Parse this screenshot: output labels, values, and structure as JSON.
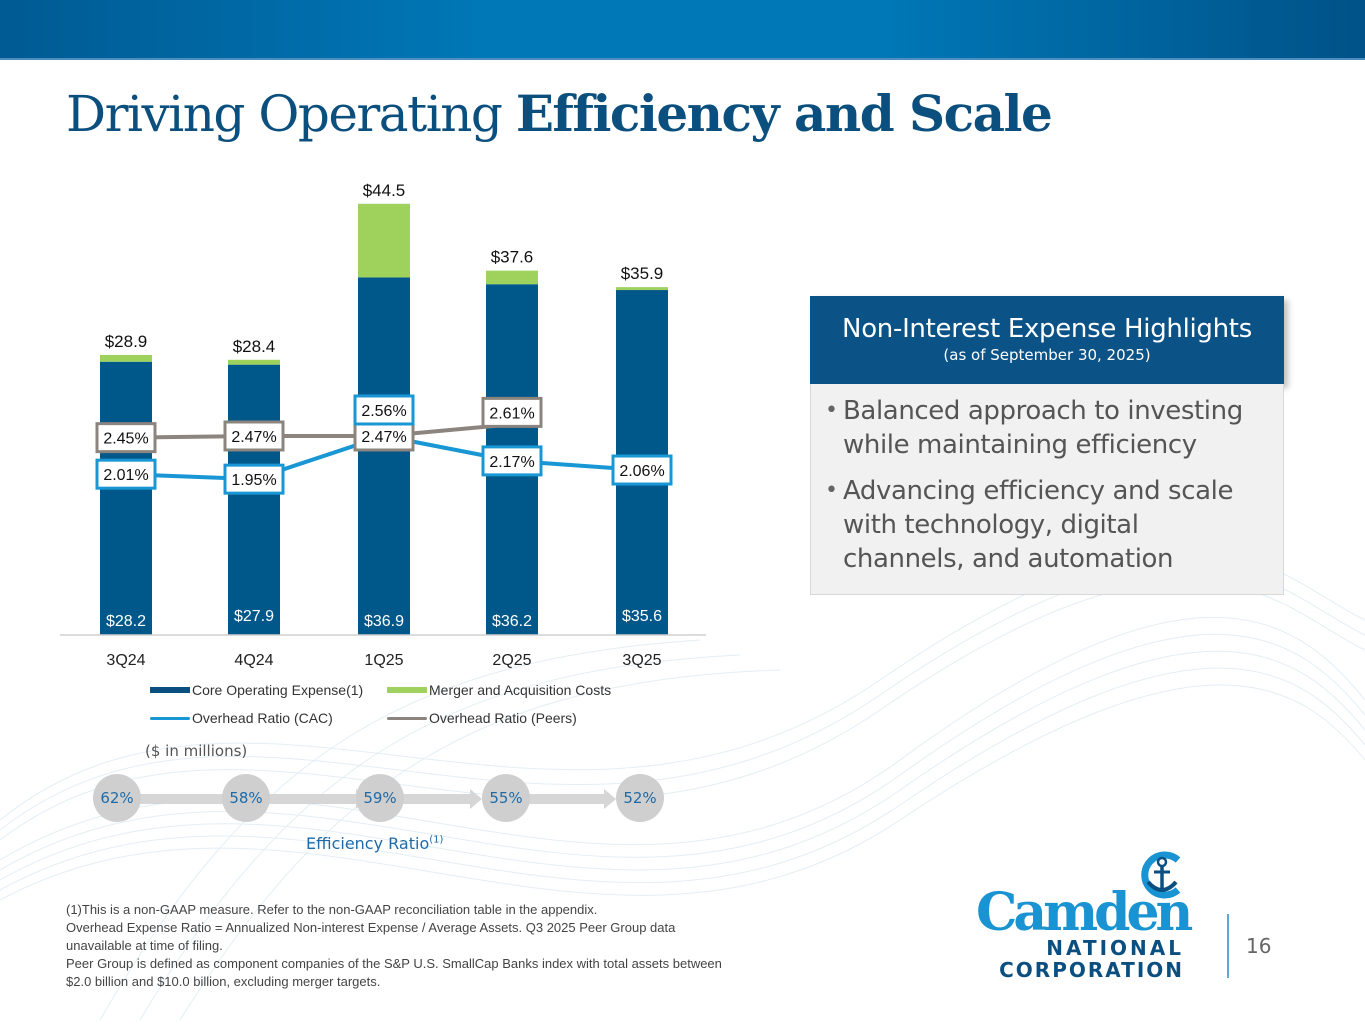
{
  "slide": {
    "title_light": "Driving Operating ",
    "title_bold": "Efficiency and Scale",
    "page_number": "16"
  },
  "colors": {
    "core": "#00578a",
    "merger": "#9fd15d",
    "cac_line": "#1897d4",
    "peers_line": "#8c847e",
    "title": "#0a4f7d"
  },
  "chart_data": {
    "type": "bar",
    "stacked": true,
    "title": "",
    "units_note": "($ in millions)",
    "categories": [
      "3Q24",
      "4Q24",
      "1Q25",
      "2Q25",
      "3Q25"
    ],
    "series": [
      {
        "name": "Core Operating Expense(1)",
        "type": "bar",
        "values": [
          28.2,
          27.9,
          36.9,
          36.2,
          35.6
        ],
        "labels": [
          "$28.2",
          "$27.9",
          "$36.9",
          "$36.2",
          "$35.6"
        ]
      },
      {
        "name": "Merger and Acquisition Costs",
        "type": "bar",
        "values": [
          0.7,
          0.5,
          7.6,
          1.4,
          0.3
        ]
      },
      {
        "name": "Overhead Ratio (CAC)",
        "type": "line",
        "axis": "secondary",
        "values": [
          2.01,
          1.95,
          2.47,
          2.17,
          2.06
        ],
        "labels": [
          "2.01%",
          "1.95%",
          "2.47%",
          "2.17%",
          "2.06%"
        ]
      },
      {
        "name": "Overhead Ratio (Peers)",
        "type": "line",
        "axis": "secondary",
        "values": [
          2.45,
          2.47,
          2.56,
          2.61,
          null
        ],
        "labels": [
          "2.45%",
          "2.47%",
          "2.56%",
          "2.61%",
          null
        ]
      }
    ],
    "totals": [
      28.9,
      28.4,
      44.5,
      37.6,
      35.9
    ],
    "total_labels": [
      "$28.9",
      "$28.4",
      "$44.5",
      "$37.6",
      "$35.9"
    ],
    "ylim": [
      0,
      50
    ],
    "y2lim": [
      0,
      3
    ],
    "grid": false,
    "legend": "bottom",
    "xlabel": "",
    "ylabel": ""
  },
  "legend": {
    "core": "Core Operating Expense(1)",
    "merger": "Merger and Acquisition Costs",
    "cac": "Overhead Ratio (CAC)",
    "peers": "Overhead Ratio (Peers)"
  },
  "efficiency": {
    "values": [
      "62%",
      "58%",
      "59%",
      "55%",
      "52%"
    ],
    "label": "Efficiency Ratio",
    "label_sup": "(1)"
  },
  "panel": {
    "title": "Non-Interest Expense Highlights",
    "subtitle": "(as of September 30, 2025)",
    "bullets": [
      "Balanced approach to investing while maintaining efficiency",
      "Advancing efficiency and scale with technology, digital channels, and automation"
    ]
  },
  "footnotes": [
    "(1)This is a non-GAAP measure. Refer to the non-GAAP reconciliation table in the appendix.",
    "Overhead Expense Ratio = Annualized Non-interest Expense / Average Assets. Q3 2025 Peer Group data unavailable at time of filing.",
    "Peer Group is defined as component companies of the S&P U.S. SmallCap Banks index with total assets between $2.0 billion and $10.0 billion, excluding merger targets."
  ],
  "logo": {
    "name": "Camden",
    "line2": "NATIONAL",
    "line3": "CORPORATION"
  }
}
